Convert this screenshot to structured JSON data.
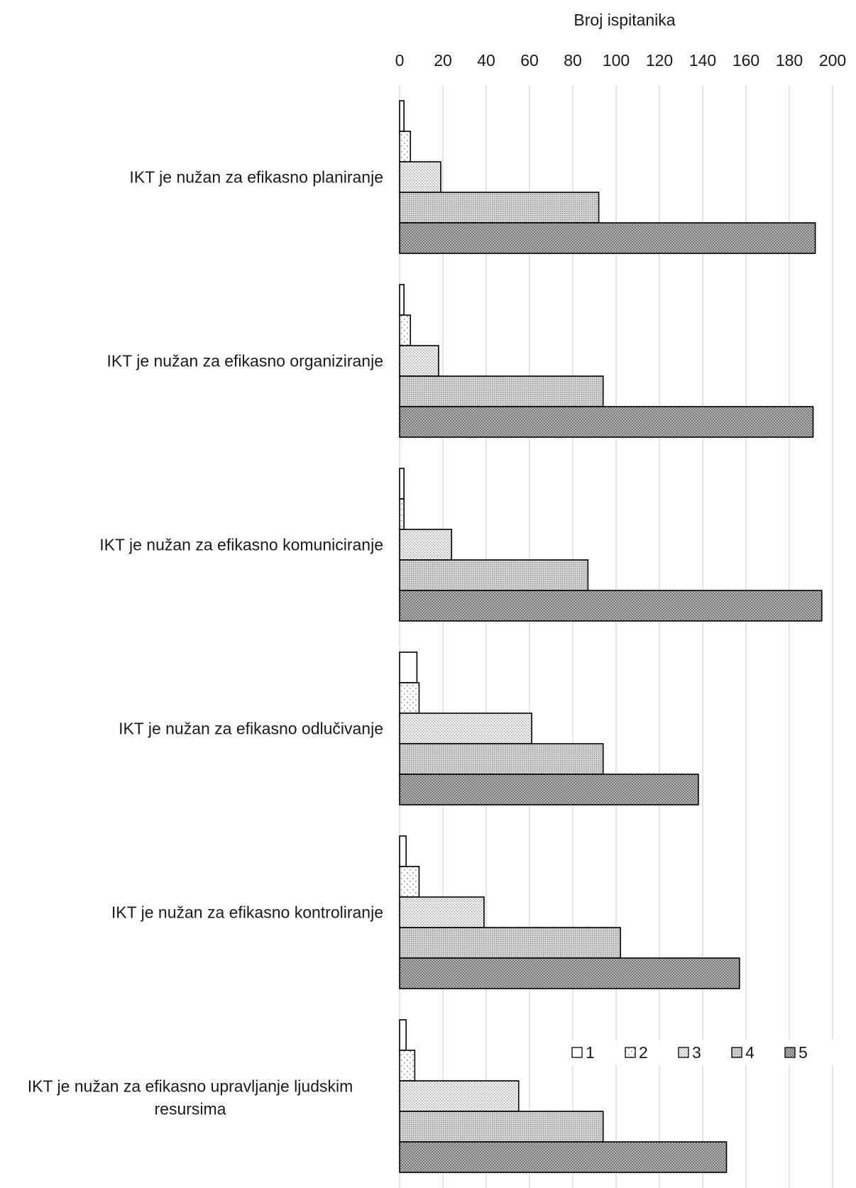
{
  "chart_data": {
    "type": "bar",
    "orientation": "horizontal",
    "title": "",
    "xlabel": "Broj ispitanika",
    "ylabel": "",
    "xlim": [
      0,
      200
    ],
    "x_ticks": [
      0,
      20,
      40,
      60,
      80,
      100,
      120,
      140,
      160,
      180,
      200
    ],
    "x_axis_position": "top",
    "grid": true,
    "legend_position": "bottom-right",
    "categories": [
      "IKT je nužan za efikasno planiranje",
      "IKT je nužan za efikasno organiziranje",
      "IKT je nužan za efikasno komuniciranje",
      "IKT je nužan za efikasno odlučivanje",
      "IKT je nužan za efikasno kontroliranje",
      "IKT je nužan za efikasno upravljanje ljudskim resursima"
    ],
    "series": [
      {
        "name": "1",
        "values": [
          2,
          2,
          2,
          8,
          3,
          3
        ],
        "color": "#ffffff",
        "pattern": "blank"
      },
      {
        "name": "2",
        "values": [
          5,
          5,
          2,
          9,
          9,
          7
        ],
        "color": "#ffffff",
        "pattern": "sparse-dots"
      },
      {
        "name": "3",
        "values": [
          19,
          18,
          24,
          61,
          39,
          55
        ],
        "color": "#f2f2f2",
        "pattern": "dense-dots"
      },
      {
        "name": "4",
        "values": [
          92,
          94,
          87,
          94,
          102,
          94
        ],
        "color": "#d9d9d9",
        "pattern": "grid"
      },
      {
        "name": "5",
        "values": [
          192,
          191,
          195,
          138,
          157,
          151
        ],
        "color": "#a6a6a6",
        "pattern": "checker"
      }
    ]
  }
}
